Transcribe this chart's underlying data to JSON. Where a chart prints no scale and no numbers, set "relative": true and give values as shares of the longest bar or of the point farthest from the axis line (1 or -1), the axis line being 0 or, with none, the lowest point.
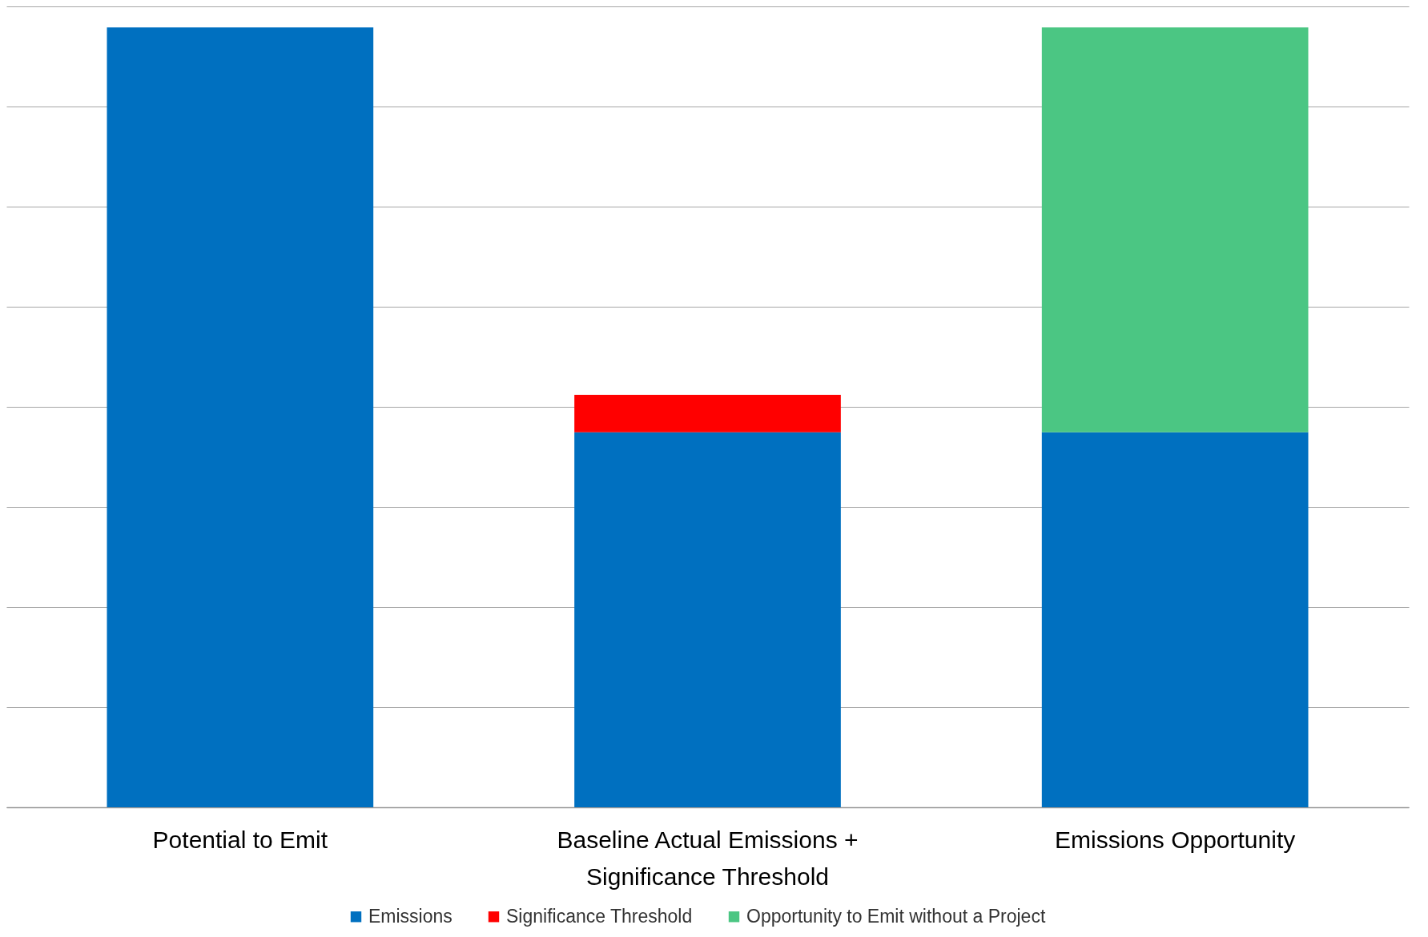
{
  "chart_data": {
    "type": "bar",
    "stacked": true,
    "relative": true,
    "categories": [
      "Potential to Emit",
      "Baseline Actual Emissions +\nSignificance Threshold",
      "Emissions Opportunity"
    ],
    "series": [
      {
        "name": "Emissions",
        "color": "#0070c0",
        "values": [
          1,
          0.481,
          0.481
        ]
      },
      {
        "name": "Significance Threshold",
        "color": "#ff0000",
        "values": [
          0,
          0.048,
          0
        ]
      },
      {
        "name": "Opportunity to Emit without a Project",
        "color": "#4bc683",
        "values": [
          0,
          0,
          0.519
        ]
      }
    ],
    "grid": "y",
    "legend": "bottom"
  }
}
